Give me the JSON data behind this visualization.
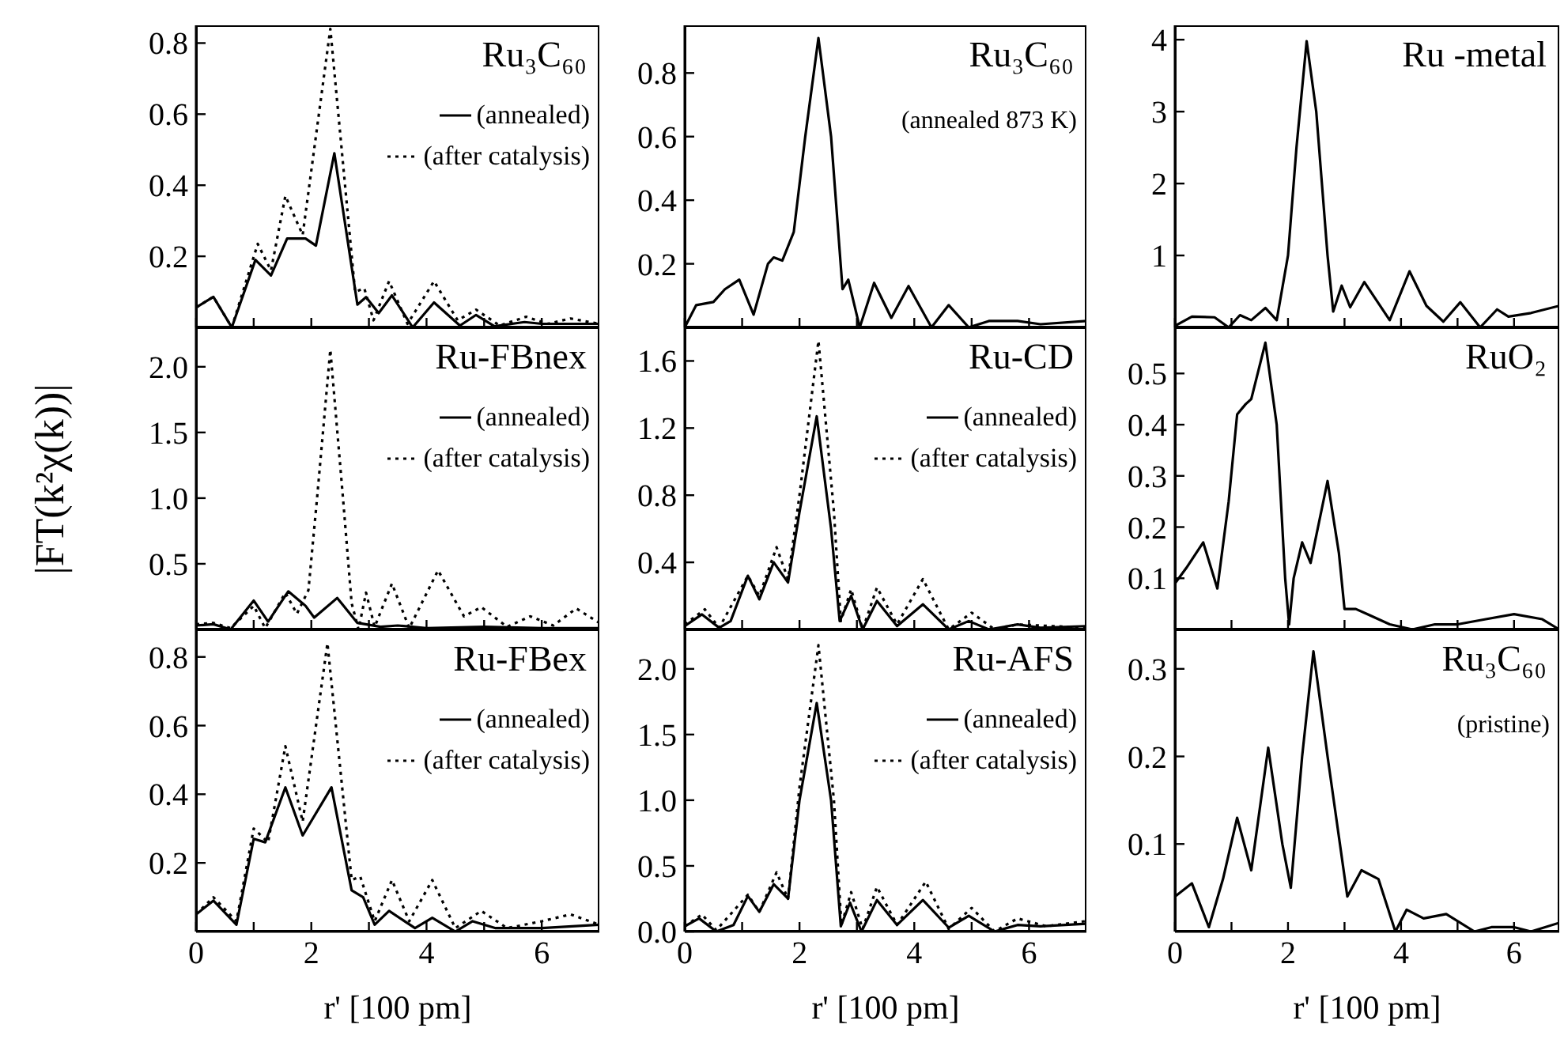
{
  "chart_data": [
    {
      "type": "line",
      "title": "Ru₃C₆₀",
      "legend": "top right",
      "tick_labels": "y",
      "xlim": [
        0,
        7
      ],
      "xticks": [
        0,
        {
          "value": 1,
          "label": null
        },
        2,
        {
          "value": 3,
          "label": null
        },
        4,
        {
          "value": 5,
          "label": null
        },
        6
      ],
      "ylim": [
        0,
        0.85
      ],
      "yticks": [
        0.2,
        0.4,
        0.6,
        0.8
      ],
      "series": [
        {
          "name": "(annealed)",
          "color": "#000000",
          "line_style": "solid",
          "x": [
            0,
            0.3,
            0.62,
            1.03,
            1.3,
            1.58,
            1.9,
            2.08,
            2.4,
            2.8,
            2.95,
            3.17,
            3.4,
            3.76,
            4.13,
            4.58,
            4.86,
            5.18,
            5.7,
            6,
            7
          ],
          "values": [
            0.056,
            0.086,
            0.0,
            0.19,
            0.146,
            0.25,
            0.25,
            0.23,
            0.49,
            0.064,
            0.085,
            0.04,
            0.09,
            0.0,
            0.07,
            0.005,
            0.035,
            0.003,
            0.015,
            0.01,
            0.01
          ]
        },
        {
          "name": "(after catalysis)",
          "color": "#000000",
          "line_style": "dotted",
          "x": [
            0,
            0.3,
            0.62,
            1.07,
            1.3,
            1.55,
            1.85,
            2.33,
            2.76,
            2.92,
            3.08,
            3.35,
            3.67,
            4.13,
            4.54,
            4.86,
            5.27,
            5.73,
            6.1,
            6.5,
            7
          ],
          "values": [
            0.056,
            0.086,
            0.0,
            0.235,
            0.16,
            0.37,
            0.26,
            0.84,
            0.1,
            0.11,
            0.02,
            0.13,
            0.01,
            0.13,
            0.02,
            0.05,
            0.005,
            0.03,
            0.01,
            0.025,
            0.01
          ]
        }
      ]
    },
    {
      "type": "line",
      "title": "Ru₃C₆₀",
      "subtitle": "(annealed 873 K)",
      "tick_labels": "y",
      "xlim": [
        0,
        7
      ],
      "xticks": [
        0,
        {
          "value": 1,
          "label": null
        },
        2,
        {
          "value": 3,
          "label": null
        },
        4,
        {
          "value": 5,
          "label": null
        },
        6
      ],
      "ylim": [
        0,
        0.95
      ],
      "yticks": [
        0.2,
        0.4,
        0.6,
        0.8
      ],
      "series": [
        {
          "color": "#000000",
          "line_style": "solid",
          "x": [
            0,
            0.2,
            0.5,
            0.7,
            0.95,
            1.2,
            1.45,
            1.55,
            1.7,
            1.9,
            2.1,
            2.33,
            2.55,
            2.75,
            2.85,
            3.05,
            3.3,
            3.6,
            3.9,
            4.3,
            4.6,
            4.95,
            5.3,
            5.8,
            6.2,
            7
          ],
          "values": [
            0.0,
            0.07,
            0.08,
            0.12,
            0.15,
            0.04,
            0.2,
            0.22,
            0.21,
            0.3,
            0.6,
            0.91,
            0.6,
            0.12,
            0.15,
            0.0,
            0.14,
            0.03,
            0.13,
            0.0,
            0.07,
            0.0,
            0.02,
            0.02,
            0.01,
            0.02
          ]
        }
      ]
    },
    {
      "type": "line",
      "title": "Ru -metal",
      "tick_labels": "y",
      "xlim": [
        0,
        6.8
      ],
      "xticks": [
        0,
        {
          "value": 1,
          "label": null
        },
        2,
        {
          "value": 3,
          "label": null
        },
        4,
        {
          "value": 5,
          "label": null
        },
        6
      ],
      "ylim": [
        0,
        4.2
      ],
      "yticks": [
        1,
        2,
        3,
        4
      ],
      "series": [
        {
          "color": "#000000",
          "line_style": "solid",
          "x": [
            0,
            0.3,
            0.7,
            0.95,
            1.15,
            1.35,
            1.6,
            1.8,
            2.0,
            2.15,
            2.33,
            2.5,
            2.7,
            2.8,
            2.95,
            3.1,
            3.35,
            3.8,
            4.15,
            4.45,
            4.75,
            5.05,
            5.4,
            5.7,
            5.9,
            6.3,
            6.8
          ],
          "values": [
            0.02,
            0.15,
            0.14,
            0.0,
            0.17,
            0.1,
            0.27,
            0.1,
            1.0,
            2.5,
            3.98,
            3.0,
            1.0,
            0.22,
            0.58,
            0.28,
            0.63,
            0.1,
            0.78,
            0.3,
            0.08,
            0.35,
            0.0,
            0.25,
            0.15,
            0.2,
            0.3
          ]
        }
      ]
    },
    {
      "type": "line",
      "title": "Ru-FBnex",
      "ylabel": "|FT(k²χ(k))|",
      "legend": "top right",
      "tick_labels": "y",
      "xlim": [
        0,
        7
      ],
      "xticks": [
        0,
        {
          "value": 1,
          "label": null
        },
        2,
        {
          "value": 3,
          "label": null
        },
        4,
        {
          "value": 5,
          "label": null
        },
        6
      ],
      "ylim": [
        0,
        2.3
      ],
      "yticks": [
        0.5,
        {
          "value": 1,
          "label": "1.0"
        },
        1.5,
        {
          "value": 2,
          "label": "2.0"
        }
      ],
      "series": [
        {
          "name": "(annealed)",
          "color": "#000000",
          "line_style": "solid",
          "x": [
            0,
            0.3,
            0.6,
            1.0,
            1.25,
            1.6,
            1.9,
            2.05,
            2.45,
            2.8,
            3.2,
            3.5,
            4,
            5,
            6,
            7
          ],
          "values": [
            0.03,
            0.04,
            0.0,
            0.22,
            0.06,
            0.29,
            0.18,
            0.09,
            0.24,
            0.05,
            0.02,
            0.03,
            0.01,
            0.02,
            0.01,
            0.01
          ]
        },
        {
          "name": "(after catalysis)",
          "color": "#000000",
          "line_style": "dotted",
          "x": [
            0,
            0.3,
            0.6,
            1.0,
            1.2,
            1.55,
            1.75,
            1.95,
            2.1,
            2.33,
            2.55,
            2.7,
            2.82,
            2.95,
            3.1,
            3.4,
            3.7,
            4.2,
            4.65,
            4.95,
            5.4,
            5.8,
            6.2,
            6.6,
            7
          ],
          "values": [
            0.04,
            0.05,
            0.01,
            0.18,
            0.01,
            0.28,
            0.12,
            0.3,
            1.0,
            2.13,
            1.0,
            0.2,
            0.0,
            0.28,
            0.02,
            0.35,
            0.01,
            0.45,
            0.1,
            0.17,
            0.02,
            0.1,
            0.03,
            0.16,
            0.05
          ]
        }
      ]
    },
    {
      "type": "line",
      "title": "Ru-CD",
      "legend": "top right",
      "tick_labels": "y",
      "xlim": [
        0,
        7
      ],
      "xticks": [
        0,
        {
          "value": 1,
          "label": null
        },
        2,
        {
          "value": 3,
          "label": null
        },
        4,
        {
          "value": 5,
          "label": null
        },
        6
      ],
      "ylim": [
        0,
        1.8
      ],
      "yticks": [
        0.4,
        0.8,
        1.2,
        1.6
      ],
      "series": [
        {
          "name": "(annealed)",
          "color": "#000000",
          "line_style": "solid",
          "x": [
            0,
            0.3,
            0.6,
            0.8,
            1.1,
            1.3,
            1.55,
            1.8,
            2.0,
            2.3,
            2.55,
            2.7,
            2.9,
            3.1,
            3.35,
            3.7,
            4.15,
            4.6,
            4.95,
            5.3,
            5.8,
            6.2,
            7
          ],
          "values": [
            0.02,
            0.09,
            0.01,
            0.05,
            0.32,
            0.18,
            0.4,
            0.28,
            0.7,
            1.27,
            0.6,
            0.05,
            0.2,
            0.0,
            0.17,
            0.02,
            0.15,
            0.0,
            0.05,
            0.0,
            0.03,
            0.01,
            0.02
          ]
        },
        {
          "name": "(after catalysis)",
          "color": "#000000",
          "line_style": "dotted",
          "x": [
            0,
            0.35,
            0.6,
            1.1,
            1.3,
            1.6,
            1.8,
            2.0,
            2.33,
            2.6,
            2.72,
            2.9,
            3.1,
            3.35,
            3.7,
            4.15,
            4.6,
            5.0,
            5.4,
            5.8,
            7
          ],
          "values": [
            0.03,
            0.12,
            0.01,
            0.32,
            0.2,
            0.49,
            0.3,
            0.8,
            1.72,
            0.7,
            0.05,
            0.24,
            0.0,
            0.25,
            0.03,
            0.3,
            0.0,
            0.1,
            0.0,
            0.03,
            0.01
          ]
        }
      ]
    },
    {
      "type": "line",
      "title": "RuO₂",
      "tick_labels": "y",
      "xlim": [
        0,
        6.8
      ],
      "xticks": [
        0,
        {
          "value": 1,
          "label": null
        },
        2,
        {
          "value": 3,
          "label": null
        },
        4,
        {
          "value": 5,
          "label": null
        },
        6
      ],
      "ylim": [
        0,
        0.59
      ],
      "yticks": [
        0.1,
        0.2,
        0.3,
        0.4,
        0.5
      ],
      "series": [
        {
          "color": "#000000",
          "line_style": "solid",
          "x": [
            0,
            0.2,
            0.5,
            0.75,
            0.95,
            1.1,
            1.25,
            1.35,
            1.6,
            1.8,
            1.95,
            2.02,
            2.1,
            2.25,
            2.4,
            2.7,
            2.9,
            3.0,
            3.2,
            3.4,
            3.8,
            4.2,
            4.6,
            5.0,
            5.5,
            6.0,
            6.5,
            6.8
          ],
          "values": [
            0.09,
            0.12,
            0.17,
            0.08,
            0.25,
            0.42,
            0.44,
            0.45,
            0.56,
            0.4,
            0.1,
            0.01,
            0.1,
            0.17,
            0.13,
            0.29,
            0.15,
            0.04,
            0.04,
            0.03,
            0.01,
            0.0,
            0.01,
            0.01,
            0.02,
            0.03,
            0.02,
            0.0
          ]
        }
      ]
    },
    {
      "type": "line",
      "title": "Ru-FBex",
      "xlabel": "r' [100 pm]",
      "legend": "top right",
      "xlim": [
        0,
        7
      ],
      "xticks": [
        0,
        {
          "value": 1,
          "label": null
        },
        2,
        {
          "value": 3,
          "label": null
        },
        4,
        {
          "value": 5,
          "label": null
        },
        6
      ],
      "ylim": [
        0,
        0.88
      ],
      "yticks": [
        0.2,
        0.4,
        0.6,
        0.8
      ],
      "series": [
        {
          "name": "(annealed)",
          "color": "#000000",
          "line_style": "solid",
          "x": [
            0,
            0.3,
            0.7,
            1.0,
            1.2,
            1.55,
            1.85,
            2.35,
            2.7,
            2.9,
            3.1,
            3.35,
            3.8,
            4.1,
            4.5,
            4.8,
            5.2,
            6,
            7
          ],
          "values": [
            0.05,
            0.09,
            0.02,
            0.27,
            0.26,
            0.42,
            0.28,
            0.42,
            0.12,
            0.1,
            0.02,
            0.06,
            0.01,
            0.04,
            0.0,
            0.03,
            0.01,
            0.01,
            0.02
          ]
        },
        {
          "name": "(after catalysis)",
          "color": "#000000",
          "line_style": "dotted",
          "x": [
            0,
            0.3,
            0.7,
            1.0,
            1.25,
            1.55,
            1.85,
            2.28,
            2.7,
            2.85,
            3.1,
            3.4,
            3.7,
            4.1,
            4.5,
            4.95,
            5.4,
            6,
            6.5,
            7
          ],
          "values": [
            0.05,
            0.1,
            0.03,
            0.3,
            0.26,
            0.54,
            0.32,
            0.84,
            0.15,
            0.16,
            0.03,
            0.15,
            0.03,
            0.15,
            0.01,
            0.06,
            0.01,
            0.03,
            0.05,
            0.02
          ]
        }
      ]
    },
    {
      "type": "line",
      "title": "Ru-AFS",
      "xlabel": "r' [100 pm]",
      "legend": "top right",
      "xlim": [
        0,
        7
      ],
      "xticks": [
        0,
        {
          "value": 1,
          "label": null
        },
        2,
        {
          "value": 3,
          "label": null
        },
        4,
        {
          "value": 5,
          "label": null
        },
        6
      ],
      "ylim": [
        0,
        2.3
      ],
      "yticks": [
        {
          "value": 0,
          "label": "0.0"
        },
        0.5,
        {
          "value": 1,
          "label": "1.0"
        },
        1.5,
        {
          "value": 2,
          "label": "2.0"
        }
      ],
      "series": [
        {
          "name": "(annealed)",
          "color": "#000000",
          "line_style": "solid",
          "x": [
            0,
            0.25,
            0.55,
            0.85,
            1.1,
            1.3,
            1.55,
            1.8,
            2.0,
            2.3,
            2.55,
            2.72,
            2.88,
            3.08,
            3.35,
            3.7,
            4.15,
            4.6,
            4.95,
            5.4,
            5.8,
            6.2,
            7
          ],
          "values": [
            0.04,
            0.1,
            0.0,
            0.05,
            0.27,
            0.15,
            0.36,
            0.25,
            1.0,
            1.74,
            1.0,
            0.04,
            0.22,
            0.0,
            0.24,
            0.05,
            0.24,
            0.03,
            0.12,
            0.0,
            0.05,
            0.04,
            0.06
          ]
        },
        {
          "name": "(after catalysis)",
          "color": "#000000",
          "line_style": "dotted",
          "x": [
            0,
            0.3,
            0.55,
            1.1,
            1.3,
            1.6,
            1.8,
            2.0,
            2.33,
            2.6,
            2.73,
            2.9,
            3.1,
            3.35,
            3.7,
            4.2,
            4.6,
            5.0,
            5.4,
            5.8,
            6.3,
            7
          ],
          "values": [
            0.04,
            0.13,
            0.01,
            0.28,
            0.15,
            0.45,
            0.25,
            1.1,
            2.18,
            1.0,
            0.05,
            0.3,
            0.02,
            0.34,
            0.05,
            0.38,
            0.02,
            0.18,
            0.0,
            0.1,
            0.04,
            0.08
          ]
        }
      ]
    },
    {
      "type": "line",
      "title": "Ru₃C₆₀",
      "subtitle": "(pristine)",
      "xlabel": "r' [100 pm]",
      "xlim": [
        0,
        6.8
      ],
      "xticks": [
        0,
        {
          "value": 1,
          "label": null
        },
        2,
        {
          "value": 3,
          "label": null
        },
        4,
        {
          "value": 5,
          "label": null
        },
        6
      ],
      "ylim": [
        0,
        0.345
      ],
      "yticks": [
        0.1,
        0.2,
        0.3
      ],
      "series": [
        {
          "color": "#000000",
          "line_style": "solid",
          "x": [
            0,
            0.3,
            0.6,
            0.85,
            1.1,
            1.35,
            1.65,
            1.9,
            2.05,
            2.25,
            2.45,
            2.7,
            3.05,
            3.3,
            3.6,
            3.9,
            4.1,
            4.4,
            4.8,
            5.3,
            5.6,
            6.0,
            6.3,
            6.8
          ],
          "values": [
            0.04,
            0.055,
            0.005,
            0.06,
            0.13,
            0.07,
            0.21,
            0.1,
            0.05,
            0.2,
            0.32,
            0.2,
            0.04,
            0.07,
            0.06,
            0.0,
            0.025,
            0.015,
            0.02,
            0.0,
            0.005,
            0.005,
            0.0,
            0.01
          ]
        }
      ]
    }
  ]
}
